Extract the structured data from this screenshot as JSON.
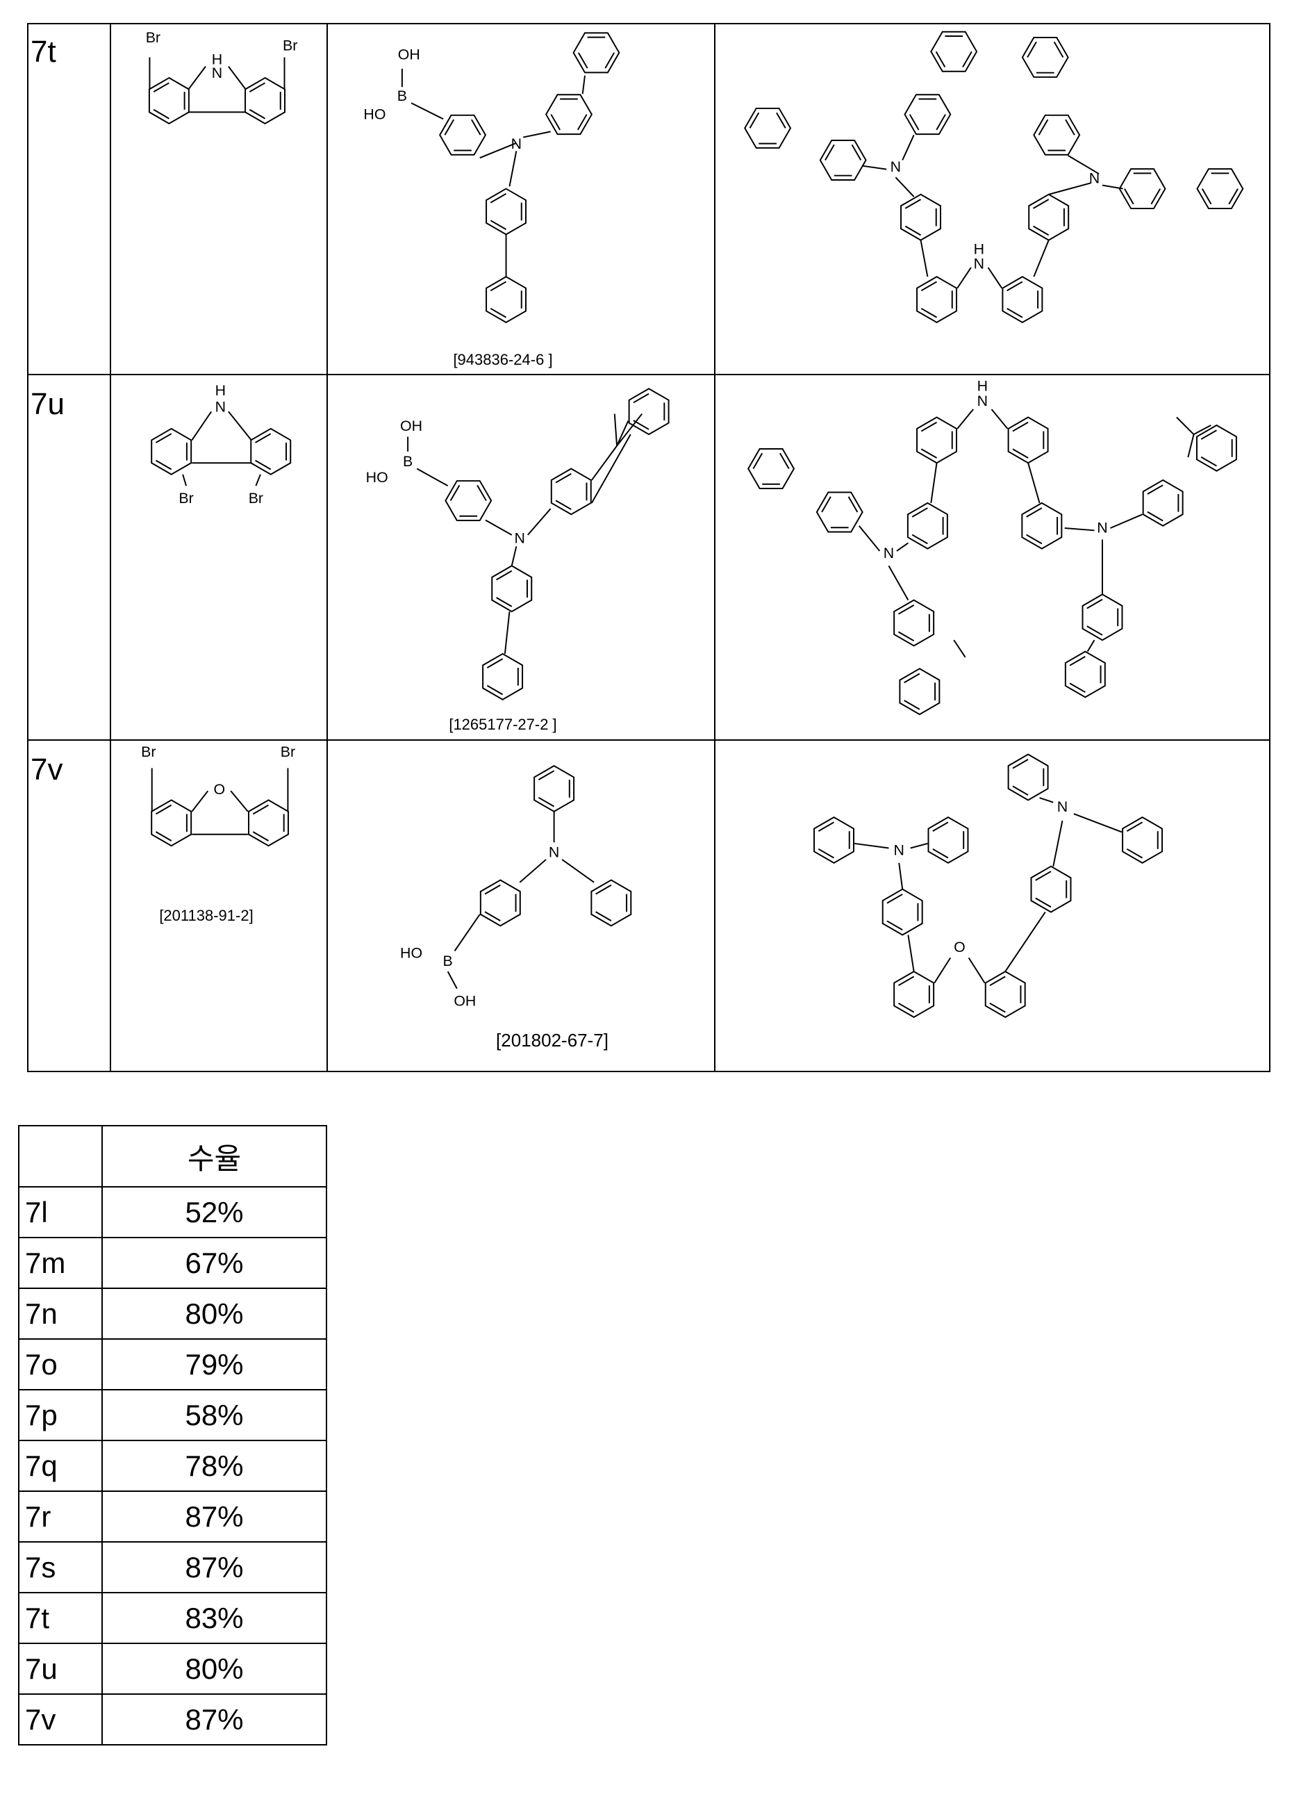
{
  "reaction_table": {
    "rows": [
      {
        "id": "7t",
        "reagent_cas": "",
        "boronic_cas": "[943836-24-6 ]"
      },
      {
        "id": "7u",
        "reagent_cas": "",
        "boronic_cas": "[1265177-27-2 ]"
      },
      {
        "id": "7v",
        "reagent_cas": "[201138-91-2]",
        "boronic_cas": "[201802-67-7]"
      }
    ]
  },
  "yield_table": {
    "header": "수율",
    "rows": [
      {
        "id": "7l",
        "yield": "52%"
      },
      {
        "id": "7m",
        "yield": "67%"
      },
      {
        "id": "7n",
        "yield": "80%"
      },
      {
        "id": "7o",
        "yield": "79%"
      },
      {
        "id": "7p",
        "yield": "58%"
      },
      {
        "id": "7q",
        "yield": "78%"
      },
      {
        "id": "7r",
        "yield": "87%"
      },
      {
        "id": "7s",
        "yield": "87%"
      },
      {
        "id": "7t",
        "yield": "83%"
      },
      {
        "id": "7u",
        "yield": "80%"
      },
      {
        "id": "7v",
        "yield": "87%"
      }
    ]
  }
}
